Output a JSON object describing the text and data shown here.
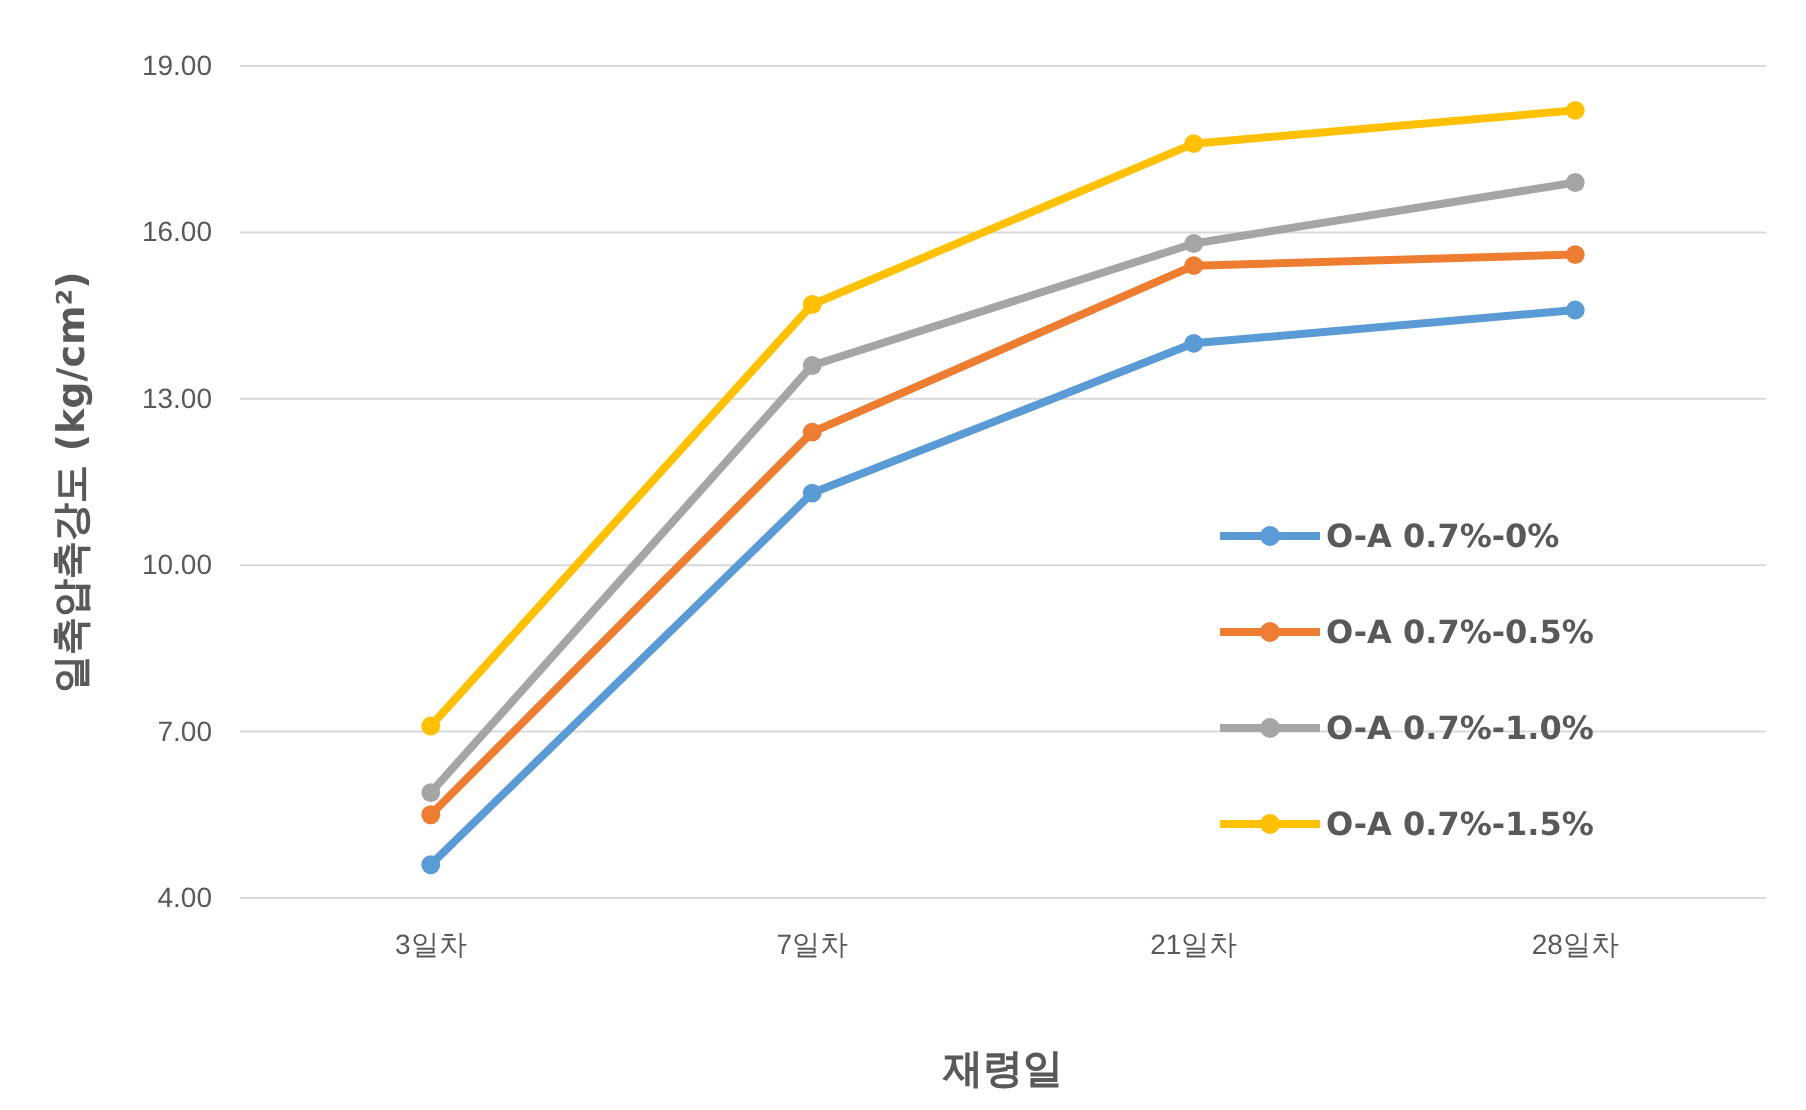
{
  "chart_data": {
    "type": "line",
    "xlabel": "재령일",
    "ylabel": "일축압축강도 (kg/cm²)",
    "categories": [
      "3일차",
      "7일차",
      "21일차",
      "28일차"
    ],
    "series": [
      {
        "name": "O-A 0.7%-0%",
        "color": "#5b9bd5",
        "values": [
          4.6,
          11.3,
          14.0,
          14.6
        ]
      },
      {
        "name": "O-A 0.7%-0.5%",
        "color": "#ed7d31",
        "values": [
          5.5,
          12.4,
          15.4,
          15.6
        ]
      },
      {
        "name": "O-A 0.7%-1.0%",
        "color": "#a5a5a5",
        "values": [
          5.9,
          13.6,
          15.8,
          16.9
        ]
      },
      {
        "name": "O-A 0.7%-1.5%",
        "color": "#ffc000",
        "values": [
          7.1,
          14.7,
          17.6,
          18.2
        ]
      }
    ],
    "ylim": [
      4,
      19
    ],
    "yticks": [
      {
        "value": 4,
        "label": "4.00"
      },
      {
        "value": 7,
        "label": "7.00"
      },
      {
        "value": 10,
        "label": "10.00"
      },
      {
        "value": 13,
        "label": "13.00"
      },
      {
        "value": 16,
        "label": "16.00"
      },
      {
        "value": 19,
        "label": "19.00"
      }
    ],
    "grid": "y",
    "legend": "right",
    "marker": "circle",
    "line_style": "solid"
  }
}
